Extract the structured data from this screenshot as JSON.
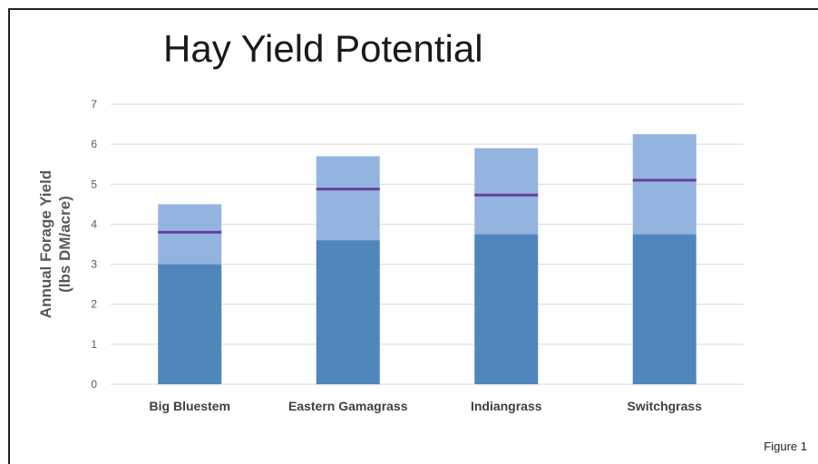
{
  "figure_label": "Figure 1",
  "colors": {
    "base": "#4f86bb",
    "upper": "#93b4df",
    "marker": "#6a3ea1",
    "grid": "#d9d9d9"
  },
  "chart_data": {
    "type": "bar",
    "stacked": true,
    "title": "Hay Yield Potential",
    "ylabel_lines": [
      "Annual Forage Yield",
      "(lbs DM/acre)"
    ],
    "xlabel": "",
    "ylim": [
      0,
      7
    ],
    "yticks": [
      0,
      1,
      2,
      3,
      4,
      5,
      6,
      7
    ],
    "grid": true,
    "categories": [
      "Big Bluestem",
      "Eastern Gamagrass",
      "Indiangrass",
      "Switchgrass"
    ],
    "series": [
      {
        "values": [
          3.0,
          3.6,
          3.75,
          3.75
        ]
      },
      {
        "values": [
          1.5,
          2.1,
          2.15,
          2.5
        ]
      }
    ],
    "markers": [
      3.8,
      4.88,
      4.73,
      5.1
    ]
  }
}
